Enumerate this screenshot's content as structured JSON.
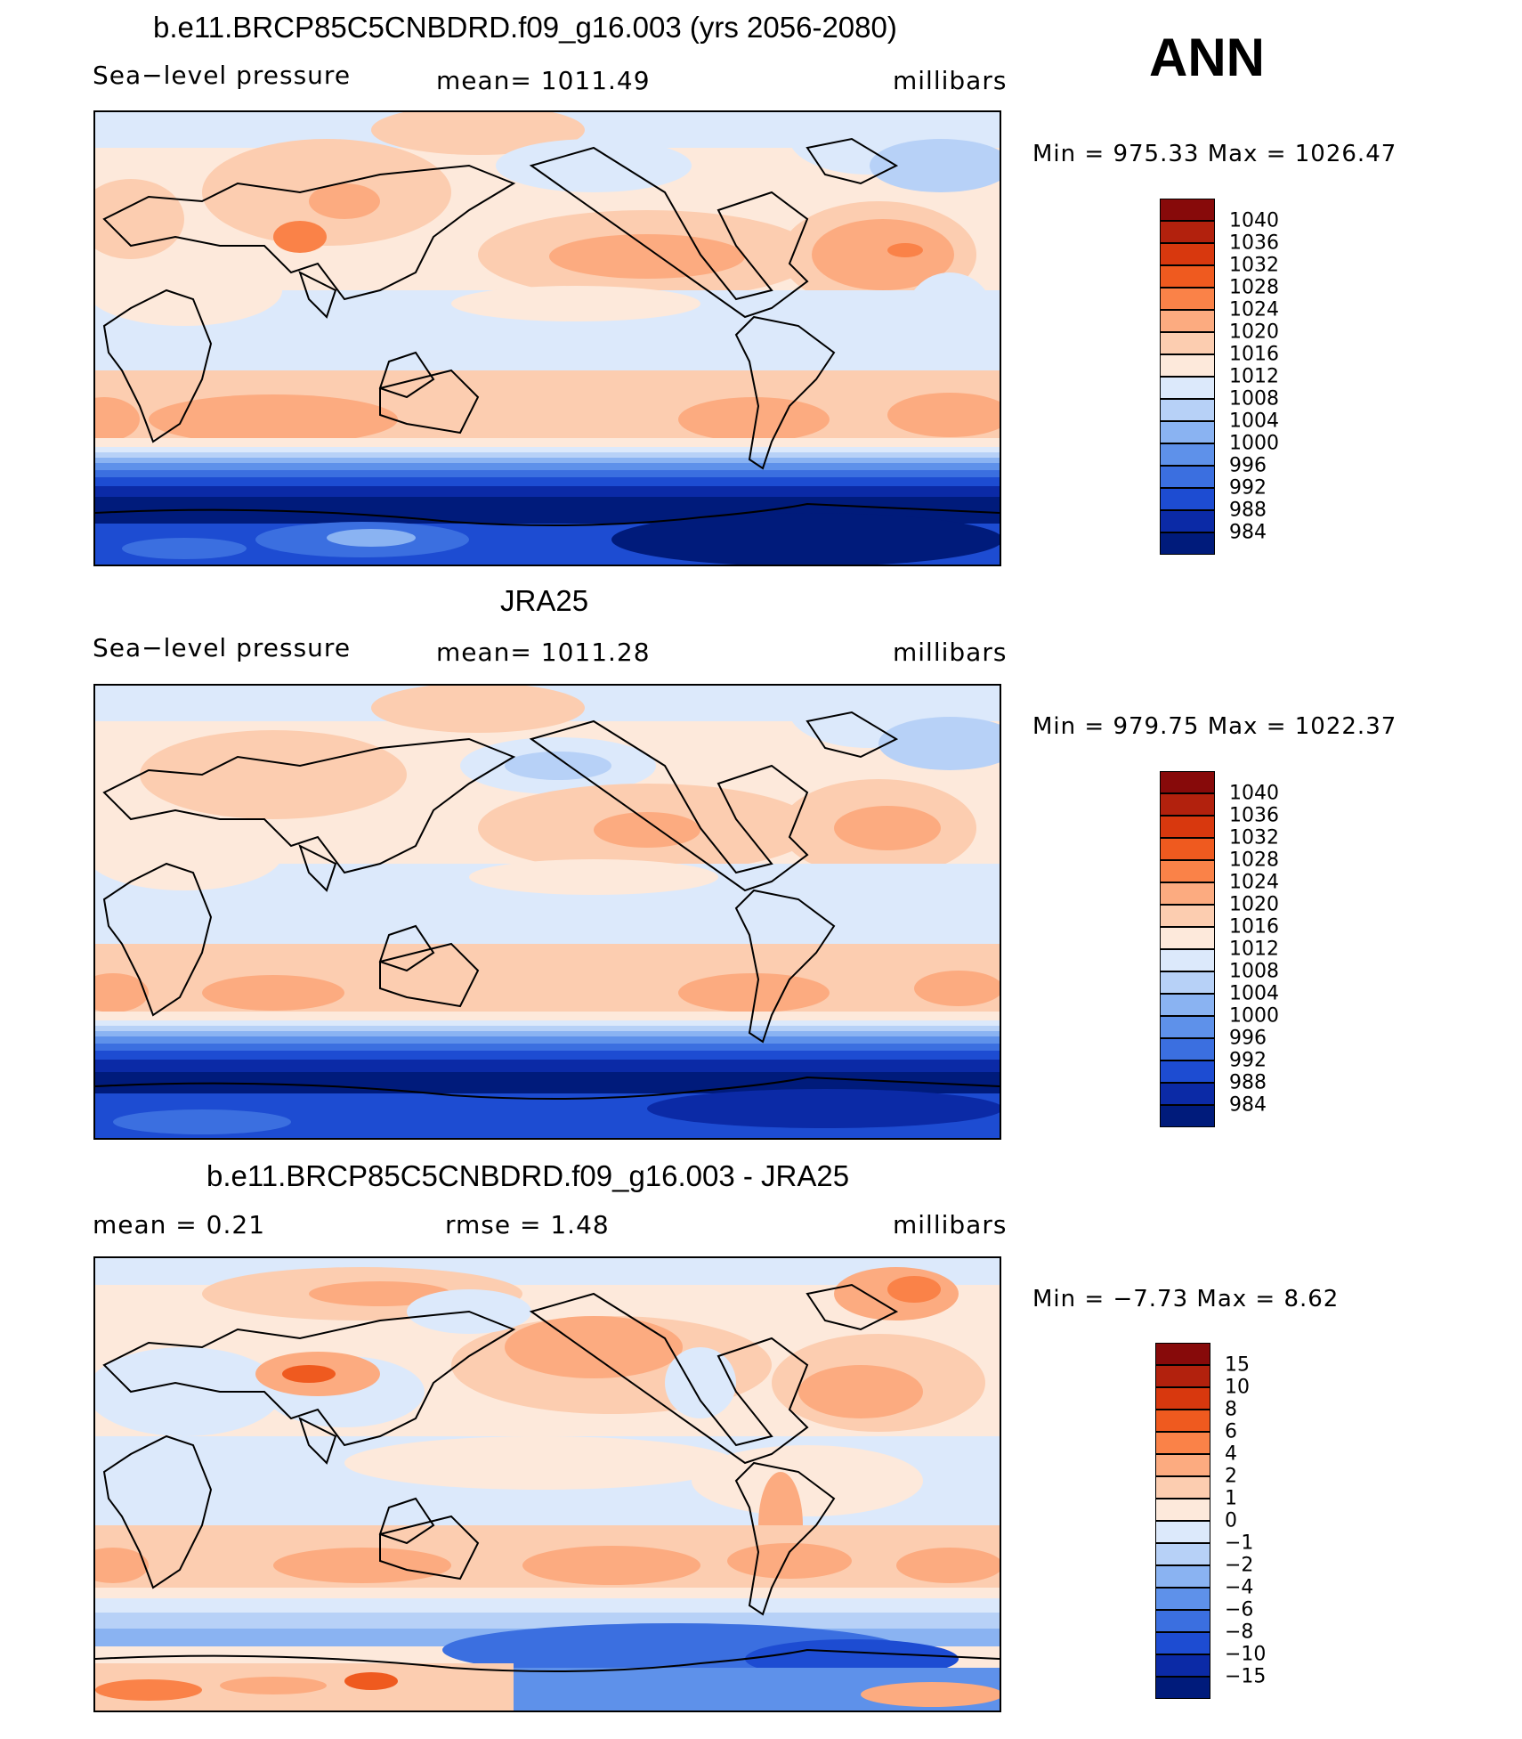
{
  "season": "ANN",
  "panels": [
    {
      "title": "b.e11.BRCP85C5CNBDRD.f09_g16.003 (yrs 2056-2080)",
      "left_label": "Sea−level pressure",
      "center_label": "mean=  1011.49",
      "right_label": "millibars",
      "minmax": "Min  =  975.33  Max  =  1026.47",
      "colorbar": {
        "labels": [
          "1040",
          "1036",
          "1032",
          "1028",
          "1024",
          "1020",
          "1016",
          "1012",
          "1008",
          "1004",
          "1000",
          "996",
          "992",
          "988",
          "984"
        ],
        "colors": [
          "#870a0a",
          "#b2210d",
          "#d8380e",
          "#ef5a1f",
          "#fa8248",
          "#fcab80",
          "#fccdb0",
          "#fde9db",
          "#dce9fb",
          "#b7d1f7",
          "#8ab3f2",
          "#5e91ea",
          "#3b6fe0",
          "#1d4cd2",
          "#0b2aa6",
          "#001b7b"
        ]
      }
    },
    {
      "title": "JRA25",
      "left_label": "Sea−level pressure",
      "center_label": "mean=  1011.28",
      "right_label": "millibars",
      "minmax": "Min  =  979.75  Max  =  1022.37",
      "colorbar": {
        "labels": [
          "1040",
          "1036",
          "1032",
          "1028",
          "1024",
          "1020",
          "1016",
          "1012",
          "1008",
          "1004",
          "1000",
          "996",
          "992",
          "988",
          "984"
        ],
        "colors": [
          "#870a0a",
          "#b2210d",
          "#d8380e",
          "#ef5a1f",
          "#fa8248",
          "#fcab80",
          "#fccdb0",
          "#fde9db",
          "#dce9fb",
          "#b7d1f7",
          "#8ab3f2",
          "#5e91ea",
          "#3b6fe0",
          "#1d4cd2",
          "#0b2aa6",
          "#001b7b"
        ]
      }
    },
    {
      "title": "b.e11.BRCP85C5CNBDRD.f09_g16.003 - JRA25",
      "left_label": "mean  =     0.21",
      "center_label": "rmse  =     1.48",
      "right_label": "millibars",
      "minmax": "Min  =    −7.73  Max  =     8.62",
      "colorbar": {
        "labels": [
          "15",
          "10",
          "8",
          "6",
          "4",
          "2",
          "1",
          "0",
          "−1",
          "−2",
          "−4",
          "−6",
          "−8",
          "−10",
          "−15"
        ],
        "colors": [
          "#870a0a",
          "#b2210d",
          "#d8380e",
          "#ef5a1f",
          "#fa8248",
          "#fcab80",
          "#fccdb0",
          "#fde9db",
          "#dce9fb",
          "#b7d1f7",
          "#8ab3f2",
          "#5e91ea",
          "#3b6fe0",
          "#1d4cd2",
          "#0b2aa6",
          "#001b7b"
        ]
      }
    }
  ]
}
